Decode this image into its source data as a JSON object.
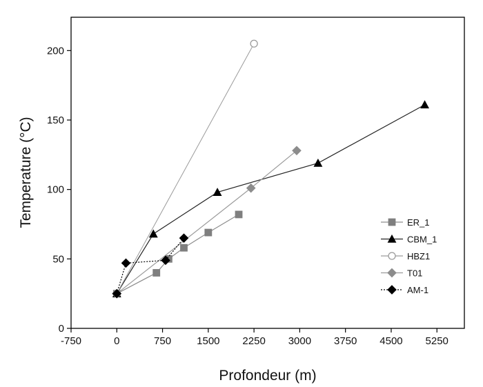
{
  "chart_data": {
    "type": "line",
    "title": "",
    "xlabel": "Profondeur (m)",
    "ylabel": "Temperature (°C)",
    "xlim": [
      -750,
      5700
    ],
    "ylim": [
      0,
      224
    ],
    "xticks": [
      -750,
      0,
      750,
      1500,
      2250,
      3000,
      3750,
      4500,
      5250
    ],
    "xtick_labels": [
      "-750",
      "0",
      "750",
      "1500",
      "2250",
      "3000",
      "3750",
      "4500",
      "5250"
    ],
    "yticks": [
      0,
      50,
      100,
      150,
      200
    ],
    "ytick_labels": [
      "0",
      "50",
      "100",
      "150",
      "200"
    ],
    "grid": false,
    "legend_position": "right-middle",
    "series": [
      {
        "name": "ER_1",
        "marker": "square",
        "filled": true,
        "color": "#7f7f7f",
        "line_color": "#8c8c8c",
        "dashed": false,
        "points": [
          [
            0,
            25
          ],
          [
            650,
            40
          ],
          [
            850,
            50
          ],
          [
            1100,
            58
          ],
          [
            1500,
            69
          ],
          [
            2000,
            82
          ]
        ]
      },
      {
        "name": "CBM_1",
        "marker": "triangle",
        "filled": true,
        "color": "#000000",
        "line_color": "#222222",
        "dashed": false,
        "points": [
          [
            0,
            25
          ],
          [
            600,
            68
          ],
          [
            1650,
            98
          ],
          [
            3300,
            119
          ],
          [
            5050,
            161
          ]
        ]
      },
      {
        "name": "HBZ1",
        "marker": "circle",
        "filled": false,
        "color": "#8c8c8c",
        "line_color": "#9a9a9a",
        "dashed": false,
        "points": [
          [
            0,
            25
          ],
          [
            2250,
            205
          ]
        ]
      },
      {
        "name": "T01",
        "marker": "diamond",
        "filled": true,
        "color": "#8c8c8c",
        "line_color": "#9a9a9a",
        "dashed": false,
        "points": [
          [
            0,
            25
          ],
          [
            2200,
            101
          ],
          [
            2950,
            128
          ]
        ]
      },
      {
        "name": "AM-1",
        "marker": "diamond",
        "filled": true,
        "color": "#000000",
        "line_color": "#000000",
        "dashed": true,
        "points": [
          [
            0,
            25
          ],
          [
            150,
            47
          ],
          [
            800,
            49
          ],
          [
            1100,
            65
          ]
        ]
      }
    ]
  }
}
